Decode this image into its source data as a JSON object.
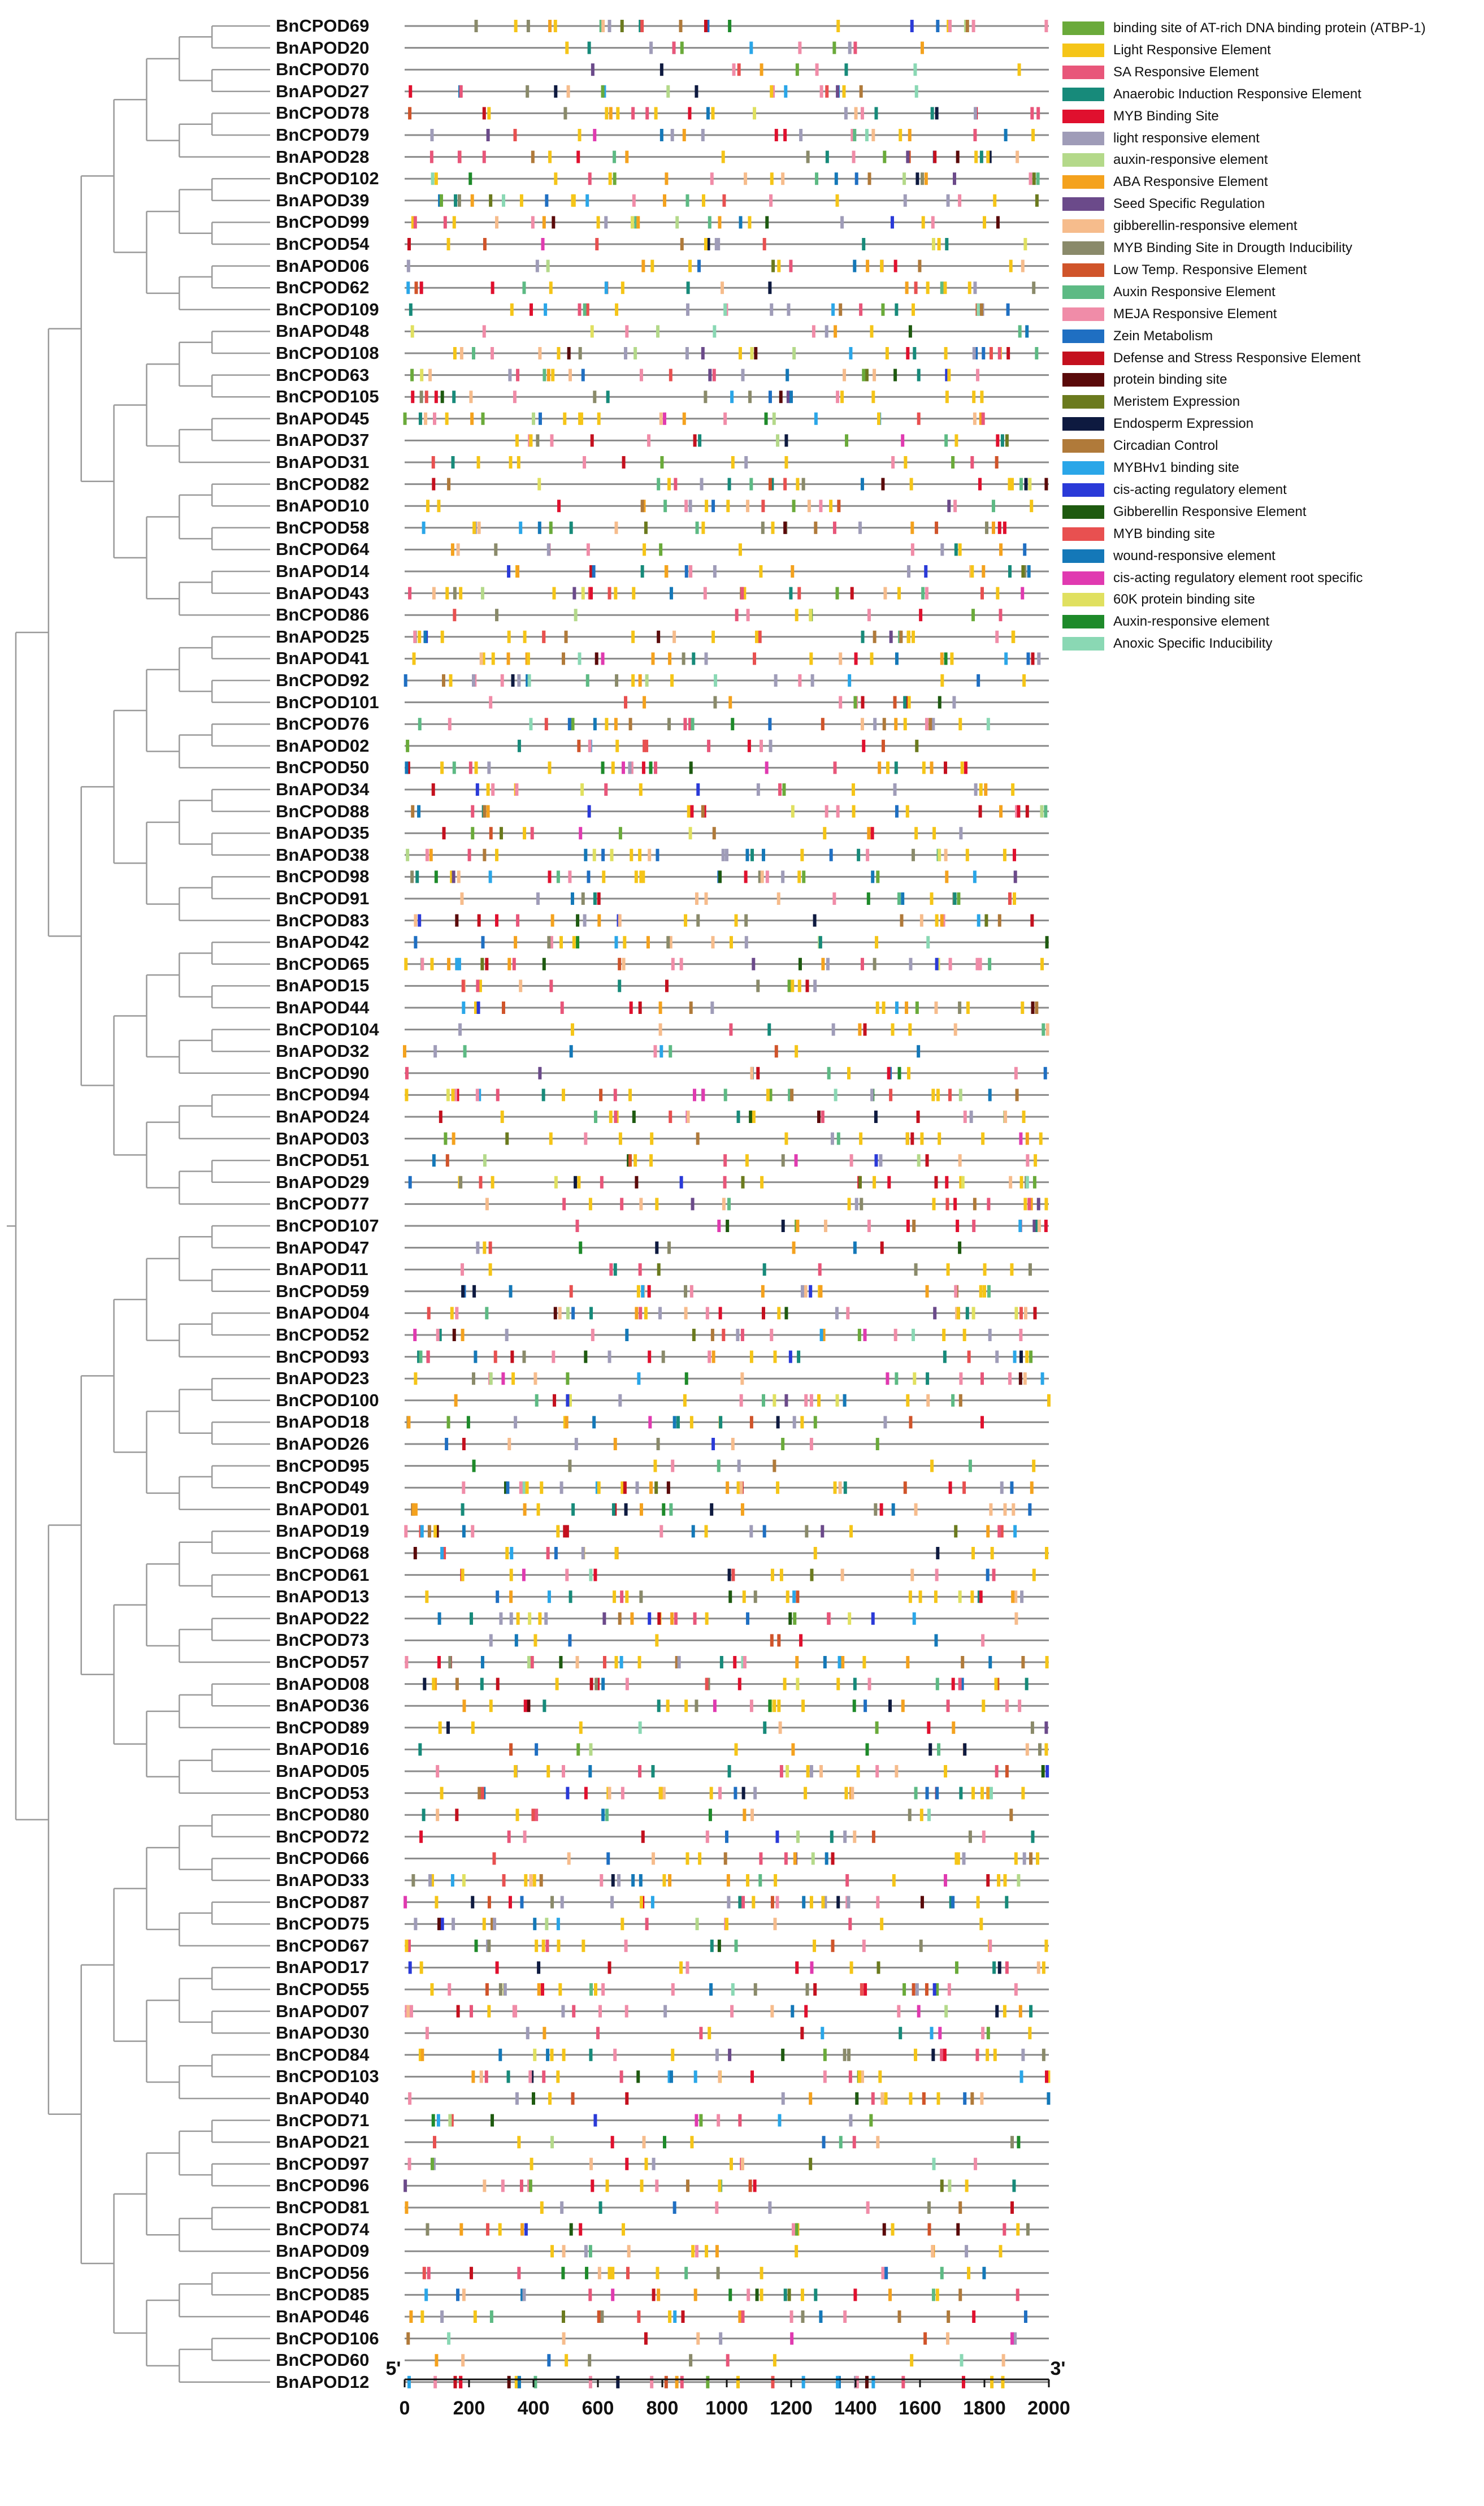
{
  "axis": {
    "five_prime": "5'",
    "three_prime": "3'",
    "min": 0,
    "max": 2000,
    "ticks": [
      0,
      200,
      400,
      600,
      800,
      1000,
      1200,
      1400,
      1600,
      1800,
      2000
    ]
  },
  "genes": [
    "BnCPOD69",
    "BnAPOD20",
    "BnCPOD70",
    "BnAPOD27",
    "BnCPOD78",
    "BnCPOD79",
    "BnAPOD28",
    "BnCPOD102",
    "BnAPOD39",
    "BnCPOD99",
    "BnCPOD54",
    "BnAPOD06",
    "BnCPOD62",
    "BnCPOD109",
    "BnAPOD48",
    "BnCPOD108",
    "BnCPOD63",
    "BnCPOD105",
    "BnAPOD45",
    "BnAPOD37",
    "BnAPOD31",
    "BnCPOD82",
    "BnAPOD10",
    "BnCPOD58",
    "BnCPOD64",
    "BnAPOD14",
    "BnAPOD43",
    "BnCPOD86",
    "BnAPOD25",
    "BnAPOD41",
    "BnCPOD92",
    "BnCPOD101",
    "BnCPOD76",
    "BnAPOD02",
    "BnCPOD50",
    "BnAPOD34",
    "BnCPOD88",
    "BnAPOD35",
    "BnAPOD38",
    "BnCPOD98",
    "BnCPOD91",
    "BnCPOD83",
    "BnAPOD42",
    "BnCPOD65",
    "BnAPOD15",
    "BnAPOD44",
    "BnCPOD104",
    "BnAPOD32",
    "BnCPOD90",
    "BnCPOD94",
    "BnAPOD24",
    "BnAPOD03",
    "BnCPOD51",
    "BnAPOD29",
    "BnCPOD77",
    "BnCPOD107",
    "BnAPOD47",
    "BnAPOD11",
    "BnCPOD59",
    "BnAPOD04",
    "BnCPOD52",
    "BnCPOD93",
    "BnAPOD23",
    "BnCPOD100",
    "BnAPOD18",
    "BnAPOD26",
    "BnCPOD95",
    "BnCPOD49",
    "BnAPOD01",
    "BnAPOD19",
    "BnCPOD68",
    "BnCPOD61",
    "BnAPOD13",
    "BnAPOD22",
    "BnCPOD73",
    "BnCPOD57",
    "BnAPOD08",
    "BnAPOD36",
    "BnCPOD89",
    "BnAPOD16",
    "BnAPOD05",
    "BnCPOD53",
    "BnCPOD80",
    "BnCPOD72",
    "BnCPOD66",
    "BnAPOD33",
    "BnCPOD87",
    "BnCPOD75",
    "BnCPOD67",
    "BnAPOD17",
    "BnCPOD55",
    "BnAPOD07",
    "BnAPOD30",
    "BnCPOD84",
    "BnCPOD103",
    "BnAPOD40",
    "BnCPOD71",
    "BnAPOD21",
    "BnCPOD97",
    "BnCPOD96",
    "BnCPOD81",
    "BnCPOD74",
    "BnAPOD09",
    "BnCPOD56",
    "BnCPOD85",
    "BnAPOD46",
    "BnCPOD106",
    "BnCPOD60",
    "BnAPOD12"
  ],
  "legend": [
    {
      "label": "binding site of AT-rich DNA binding protein (ATBP-1)",
      "color": "#6aaa3a"
    },
    {
      "label": "Light Responsive Element",
      "color": "#f5c518"
    },
    {
      "label": "SA Responsive Element",
      "color": "#e8567a"
    },
    {
      "label": "Anaerobic Induction Responsive Element",
      "color": "#178a7a"
    },
    {
      "label": "MYB Binding Site",
      "color": "#e0102e"
    },
    {
      "label": "light responsive element",
      "color": "#9f9cb8"
    },
    {
      "label": "auxin-responsive element",
      "color": "#b4d98a"
    },
    {
      "label": "ABA Responsive Element",
      "color": "#f4a21e"
    },
    {
      "label": "Seed Specific Regulation",
      "color": "#6b4a8a"
    },
    {
      "label": "gibberellin-responsive element",
      "color": "#f6bc8c"
    },
    {
      "label": "MYB Binding Site in Drougth Inducibility",
      "color": "#8a8a6a"
    },
    {
      "label": "Low Temp. Responsive Element",
      "color": "#d0542a"
    },
    {
      "label": "Auxin Responsive Element",
      "color": "#5dba84"
    },
    {
      "label": "MEJA Responsive Element",
      "color": "#f08ca8"
    },
    {
      "label": "Zein Metabolism",
      "color": "#1f6fc2"
    },
    {
      "label": "Defense and Stress Responsive Element",
      "color": "#c4101e"
    },
    {
      "label": "protein binding site",
      "color": "#5a0a0a"
    },
    {
      "label": "Meristem Expression",
      "color": "#6b7a1e"
    },
    {
      "label": "Endosperm Expression",
      "color": "#0e1a40"
    },
    {
      "label": "Circadian Control",
      "color": "#b07a3a"
    },
    {
      "label": "MYBHv1 binding site",
      "color": "#2aa6e8"
    },
    {
      "label": "cis-acting regulatory element",
      "color": "#2a3ad8"
    },
    {
      "label": "Gibberellin Responsive Element",
      "color": "#1e5a10"
    },
    {
      "label": "MYB binding site",
      "color": "#e85050"
    },
    {
      "label": "wound-responsive element",
      "color": "#1478b8"
    },
    {
      "label": "cis-acting regulatory element root specific",
      "color": "#e03ab0"
    },
    {
      "label": "60K protein binding site",
      "color": "#e0e060"
    },
    {
      "label": "Auxin-responsive element",
      "color": "#1e8a2a"
    },
    {
      "label": "Anoxic Specific Inducibility",
      "color": "#8ad8b4"
    }
  ]
}
